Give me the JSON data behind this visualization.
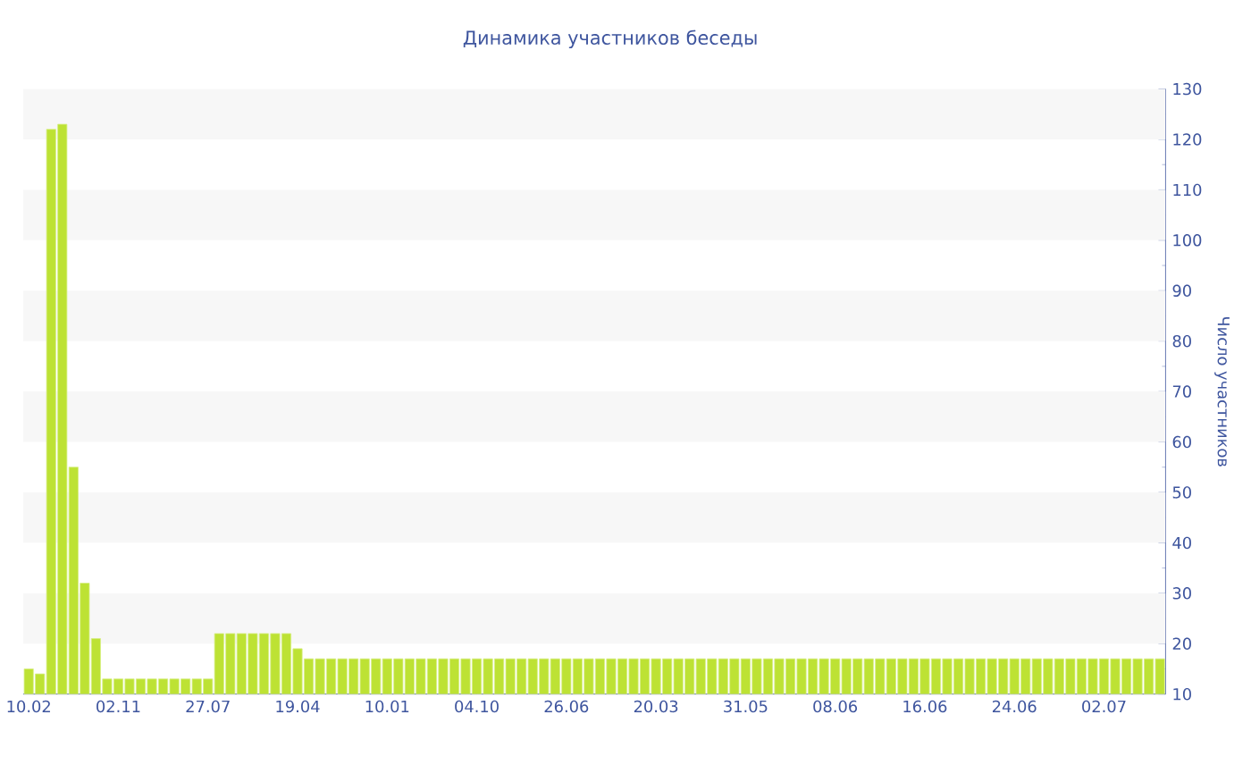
{
  "chart_data": {
    "type": "bar",
    "title": "Динамика участников беседы",
    "ylabel": "Число участников",
    "categories": [
      "10.02",
      null,
      null,
      null,
      null,
      null,
      null,
      null,
      "02.11",
      null,
      null,
      null,
      null,
      null,
      null,
      null,
      "27.07",
      null,
      null,
      null,
      null,
      null,
      null,
      null,
      "19.04",
      null,
      null,
      null,
      null,
      null,
      null,
      null,
      "10.01",
      null,
      null,
      null,
      null,
      null,
      null,
      null,
      "04.10",
      null,
      null,
      null,
      null,
      null,
      null,
      null,
      "26.06",
      null,
      null,
      null,
      null,
      null,
      null,
      null,
      "20.03",
      null,
      null,
      null,
      null,
      null,
      null,
      null,
      "31.05",
      null,
      null,
      null,
      null,
      null,
      null,
      null,
      "08.06",
      null,
      null,
      null,
      null,
      null,
      null,
      null,
      "16.06",
      null,
      null,
      null,
      null,
      null,
      null,
      null,
      "24.06",
      null,
      null,
      null,
      null,
      null,
      null,
      null,
      "02.07",
      null,
      null,
      null,
      null,
      null
    ],
    "values": [
      15,
      14,
      122,
      123,
      55,
      32,
      21,
      13,
      13,
      13,
      13,
      13,
      13,
      13,
      13,
      13,
      13,
      22,
      22,
      22,
      22,
      22,
      22,
      22,
      19,
      17,
      17,
      17,
      17,
      17,
      17,
      17,
      17,
      17,
      17,
      17,
      17,
      17,
      17,
      17,
      17,
      17,
      17,
      17,
      17,
      17,
      17,
      17,
      17,
      17,
      17,
      17,
      17,
      17,
      17,
      17,
      17,
      17,
      17,
      17,
      17,
      17,
      17,
      17,
      17,
      17,
      17,
      17,
      17,
      17,
      17,
      17,
      17,
      17,
      17,
      17,
      17,
      17,
      17,
      17,
      17,
      17,
      17,
      17,
      17,
      17,
      17,
      17,
      17,
      17,
      17,
      17,
      17,
      17,
      17,
      17,
      17,
      17,
      17,
      17,
      17,
      17
    ],
    "color": "#bde234",
    "ylim": [
      10,
      130
    ],
    "yticks": [
      10,
      20,
      30,
      40,
      50,
      60,
      70,
      80,
      90,
      100,
      110,
      120,
      130
    ],
    "bands": [
      {
        "axis": "y",
        "from": 20,
        "to": 30,
        "color": "#f7f7f7"
      },
      {
        "axis": "y",
        "from": 40,
        "to": 50,
        "color": "#f7f7f7"
      },
      {
        "axis": "y",
        "from": 60,
        "to": 70,
        "color": "#f7f7f7"
      },
      {
        "axis": "y",
        "from": 80,
        "to": 90,
        "color": "#f7f7f7"
      },
      {
        "axis": "y",
        "from": 100,
        "to": 110,
        "color": "#f7f7f7"
      },
      {
        "axis": "y",
        "from": 120,
        "to": 130,
        "color": "#f7f7f7"
      }
    ]
  }
}
